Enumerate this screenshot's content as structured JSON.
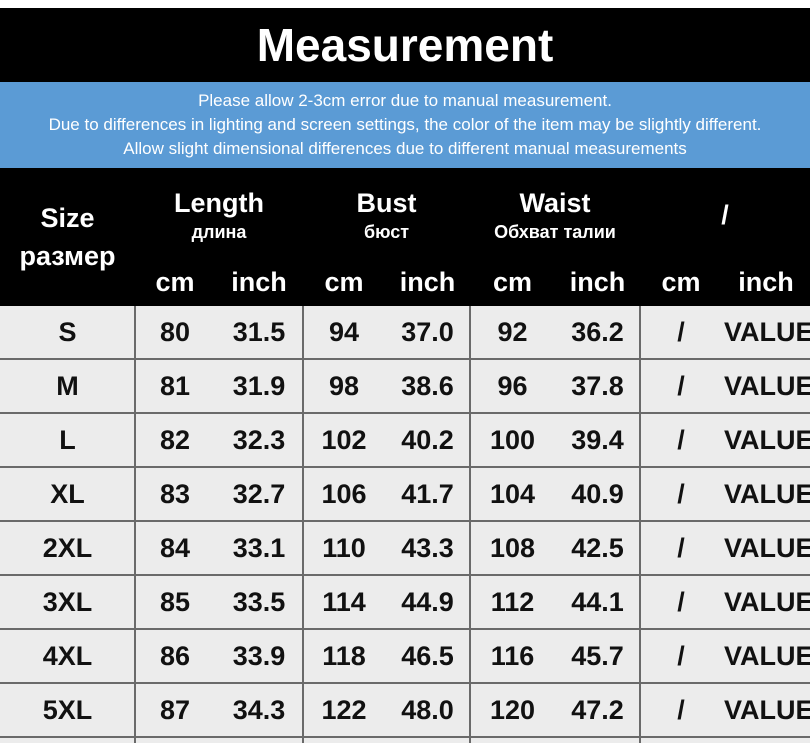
{
  "header": {
    "title": "Measurement",
    "notes": [
      "Please allow 2-3cm error due to manual measurement.",
      "Due to differences in lighting and screen settings, the color of the item may be slightly different.",
      "Allow slight dimensional differences due to different manual measurements"
    ]
  },
  "table": {
    "size_header": [
      "Size",
      "размер"
    ],
    "groups": [
      {
        "name": "Length",
        "sub": "длина",
        "units": [
          "cm",
          "inch"
        ]
      },
      {
        "name": "Bust",
        "sub": "бюст",
        "units": [
          "cm",
          "inch"
        ]
      },
      {
        "name": "Waist",
        "sub": "Обхват талии",
        "units": [
          "cm",
          "inch"
        ]
      },
      {
        "name": "/",
        "units": [
          "cm",
          "inch"
        ]
      }
    ],
    "rows": [
      [
        "S",
        "80",
        "31.5",
        "94",
        "37.0",
        "92",
        "36.2",
        "/",
        "VALUE"
      ],
      [
        "M",
        "81",
        "31.9",
        "98",
        "38.6",
        "96",
        "37.8",
        "/",
        "VALUE"
      ],
      [
        "L",
        "82",
        "32.3",
        "102",
        "40.2",
        "100",
        "39.4",
        "/",
        "VALUE"
      ],
      [
        "XL",
        "83",
        "32.7",
        "106",
        "41.7",
        "104",
        "40.9",
        "/",
        "VALUE"
      ],
      [
        "2XL",
        "84",
        "33.1",
        "110",
        "43.3",
        "108",
        "42.5",
        "/",
        "VALUE"
      ],
      [
        "3XL",
        "85",
        "33.5",
        "114",
        "44.9",
        "112",
        "44.1",
        "/",
        "VALUE"
      ],
      [
        "4XL",
        "86",
        "33.9",
        "118",
        "46.5",
        "116",
        "45.7",
        "/",
        "VALUE"
      ],
      [
        "5XL",
        "87",
        "34.3",
        "122",
        "48.0",
        "120",
        "47.2",
        "/",
        "VALUE"
      ]
    ]
  }
}
